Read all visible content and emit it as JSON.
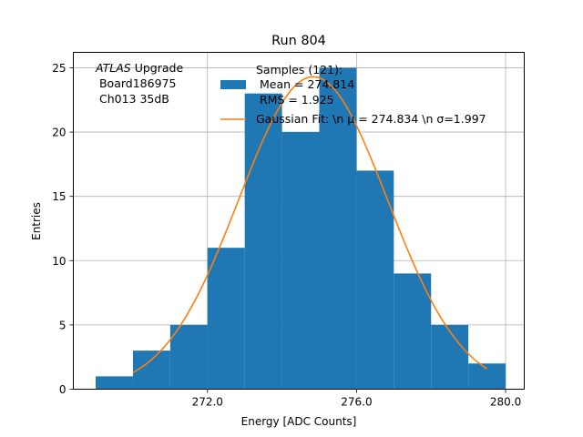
{
  "chart_data": {
    "type": "bar",
    "title": "Run 804",
    "xlabel": "Energy [ADC Counts]",
    "ylabel": "Entries",
    "xlim": [
      268.4,
      280.5
    ],
    "ylim": [
      0,
      26.2
    ],
    "grid": true,
    "x_ticks": [
      272.0,
      276.0,
      280.0
    ],
    "x_tick_labels": [
      "272.0",
      "276.0",
      "280.0"
    ],
    "y_ticks": [
      0,
      5,
      10,
      15,
      20,
      25
    ],
    "y_tick_labels": [
      "0",
      "5",
      "10",
      "15",
      "20",
      "25"
    ],
    "histogram": {
      "bin_edges": [
        269,
        270,
        271,
        272,
        273,
        274,
        275,
        276,
        277,
        278,
        279,
        280
      ],
      "counts": [
        1,
        3,
        5,
        11,
        23,
        20,
        25,
        17,
        9,
        5,
        2
      ],
      "color": "#1f77b4"
    },
    "fit": {
      "mu": 274.834,
      "sigma": 1.997,
      "amplitude": 24.3,
      "x_range": [
        270.0,
        279.5
      ],
      "color": "#ff7f0e"
    },
    "annotation": {
      "line1_italic": "ATLAS",
      "line1_rest": " Upgrade",
      "line2": " Board186975",
      "line3": " Ch013 35dB"
    },
    "legend": {
      "placement": "top-center",
      "hist_lines": [
        "Samples (121):",
        " Mean = 274.814",
        " RMS = 1.925"
      ],
      "fit_label": "Gaussian Fit: \\n μ = 274.834 \\n σ=1.997"
    }
  }
}
